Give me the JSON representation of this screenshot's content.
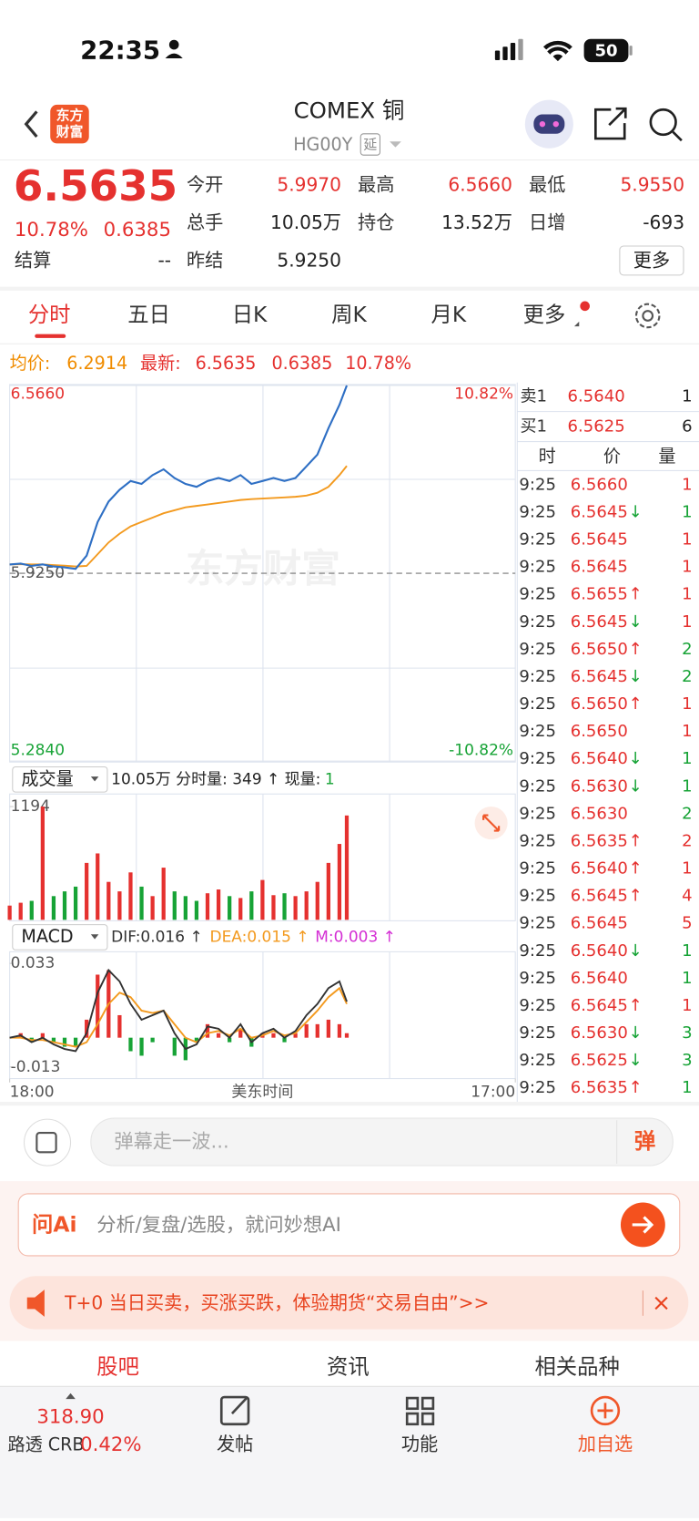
{
  "status": {
    "time": "22:35",
    "battery": "50"
  },
  "header": {
    "logo": [
      "东方",
      "财富"
    ],
    "title": "COMEX 铜",
    "code": "HG00Y",
    "tag": "延"
  },
  "quote": {
    "price": "6.5635",
    "change_pct": "10.78%",
    "change": "0.6385",
    "fields": [
      {
        "label": "今开",
        "value": "5.9970"
      },
      {
        "label": "最高",
        "value": "6.5660"
      },
      {
        "label": "最低",
        "value": "5.9550"
      },
      {
        "label": "总手",
        "value": "10.05万"
      },
      {
        "label": "持仓",
        "value": "13.52万"
      },
      {
        "label": "日增",
        "value": "-693"
      },
      {
        "label": "结算",
        "value": "--"
      },
      {
        "label": "昨结",
        "value": "5.9250"
      }
    ],
    "more": "更多"
  },
  "tabs": [
    "分时",
    "五日",
    "日K",
    "周K",
    "月K",
    "更多"
  ],
  "info": {
    "avg_label": "均价:",
    "avg": "6.2914",
    "latest_label": "最新:",
    "latest": "6.5635",
    "change": "0.6385",
    "change_pct": "10.78%"
  },
  "intraday": {
    "watermark": "东方财富",
    "xlim": [
      0,
      1380
    ],
    "xticks": [
      {
        "value": 0,
        "label": "18:00"
      },
      {
        "value": 1380,
        "label": "17:00"
      }
    ],
    "x_title": "美东时间",
    "ylim": [
      5.284,
      6.566
    ],
    "yticks": [
      {
        "value": 6.566,
        "label": "6.5660"
      },
      {
        "value": 5.925,
        "label": "5.9250"
      },
      {
        "value": 5.284,
        "label": "5.2840"
      }
    ],
    "pct_labels": [
      "10.82%",
      "-10.82%"
    ],
    "x": [
      0,
      30,
      60,
      90,
      120,
      150,
      180,
      210,
      240,
      270,
      300,
      330,
      360,
      390,
      420,
      450,
      480,
      510,
      540,
      570,
      600,
      630,
      660,
      690,
      720,
      750,
      780,
      810,
      840,
      870,
      900,
      920
    ],
    "price": {
      "color": "#2e6fc4",
      "values": [
        5.955,
        5.958,
        5.95,
        5.955,
        5.948,
        5.945,
        5.94,
        5.985,
        6.1,
        6.17,
        6.21,
        6.24,
        6.23,
        6.26,
        6.28,
        6.25,
        6.23,
        6.22,
        6.24,
        6.25,
        6.24,
        6.26,
        6.23,
        6.24,
        6.25,
        6.24,
        6.25,
        6.29,
        6.33,
        6.42,
        6.5,
        6.566
      ]
    },
    "avg": {
      "color": "#f39a1f",
      "values": [
        5.955,
        5.956,
        5.955,
        5.955,
        5.953,
        5.951,
        5.948,
        5.95,
        5.99,
        6.03,
        6.06,
        6.085,
        6.1,
        6.115,
        6.13,
        6.14,
        6.15,
        6.155,
        6.16,
        6.165,
        6.17,
        6.175,
        6.178,
        6.18,
        6.182,
        6.184,
        6.186,
        6.19,
        6.2,
        6.22,
        6.26,
        6.2914
      ]
    }
  },
  "volume": {
    "label": "成交量",
    "summary": "10.05万 分时量: 349 ↑ 现量:",
    "current": "1",
    "ylim": [
      0,
      1194
    ],
    "yticks": [
      1194
    ],
    "up_color": "#e5312f",
    "down_color": "#17a336",
    "values": [
      150,
      180,
      200,
      1194,
      250,
      300,
      350,
      600,
      700,
      400,
      300,
      500,
      350,
      250,
      550,
      300,
      250,
      200,
      280,
      320,
      250,
      230,
      300,
      420,
      260,
      280,
      250,
      300,
      400,
      600,
      800,
      1100
    ]
  },
  "macd": {
    "label": "MACD",
    "dif_label": "DIF:0.016 ↑",
    "dea_label": "DEA:0.015 ↑",
    "m_label": "M:0.003 ↑",
    "ylim": [
      -0.013,
      0.033
    ],
    "yticks": [
      0.033,
      -0.013
    ],
    "dif": {
      "color": "#333333",
      "values": [
        0,
        0.001,
        -0.002,
        0,
        -0.003,
        -0.005,
        -0.006,
        0.002,
        0.02,
        0.03,
        0.025,
        0.015,
        0.008,
        0.01,
        0.012,
        0.002,
        -0.005,
        -0.003,
        0.005,
        0.004,
        0,
        0.006,
        -0.002,
        0.002,
        0.004,
        0,
        0.003,
        0.01,
        0.015,
        0.022,
        0.025,
        0.016
      ]
    },
    "dea": {
      "color": "#f39a1f",
      "values": [
        0,
        0,
        -0.001,
        -0.001,
        -0.002,
        -0.003,
        -0.004,
        -0.002,
        0.006,
        0.015,
        0.02,
        0.018,
        0.012,
        0.011,
        0.012,
        0.006,
        0,
        -0.002,
        0.002,
        0.003,
        0.001,
        0.004,
        0,
        0.001,
        0.003,
        0.001,
        0.002,
        0.007,
        0.012,
        0.018,
        0.022,
        0.015
      ]
    }
  },
  "book": {
    "sell": [
      "卖1",
      "6.5640",
      "1"
    ],
    "buy": [
      "买1",
      "6.5625",
      "6"
    ],
    "headers": [
      "时",
      "价",
      "量"
    ],
    "trades": [
      {
        "time": "9:25",
        "price": "6.5660",
        "vol": "1",
        "vol_color": "red"
      },
      {
        "time": "9:25",
        "price": "6.5645",
        "arrow": "↓",
        "vol": "1",
        "vol_color": "green"
      },
      {
        "time": "9:25",
        "price": "6.5645",
        "vol": "1",
        "vol_color": "red"
      },
      {
        "time": "9:25",
        "price": "6.5645",
        "vol": "1",
        "vol_color": "red"
      },
      {
        "time": "9:25",
        "price": "6.5655",
        "arrow": "↑",
        "vol": "1",
        "vol_color": "red"
      },
      {
        "time": "9:25",
        "price": "6.5645",
        "arrow": "↓",
        "vol": "1",
        "vol_color": "red"
      },
      {
        "time": "9:25",
        "price": "6.5650",
        "arrow": "↑",
        "vol": "2",
        "vol_color": "green"
      },
      {
        "time": "9:25",
        "price": "6.5645",
        "arrow": "↓",
        "vol": "2",
        "vol_color": "green"
      },
      {
        "time": "9:25",
        "price": "6.5650",
        "arrow": "↑",
        "vol": "1",
        "vol_color": "red"
      },
      {
        "time": "9:25",
        "price": "6.5650",
        "vol": "1",
        "vol_color": "red"
      },
      {
        "time": "9:25",
        "price": "6.5640",
        "arrow": "↓",
        "vol": "1",
        "vol_color": "green"
      },
      {
        "time": "9:25",
        "price": "6.5630",
        "arrow": "↓",
        "vol": "1",
        "vol_color": "green"
      },
      {
        "time": "9:25",
        "price": "6.5630",
        "vol": "2",
        "vol_color": "green"
      },
      {
        "time": "9:25",
        "price": "6.5635",
        "arrow": "↑",
        "vol": "2",
        "vol_color": "red"
      },
      {
        "time": "9:25",
        "price": "6.5640",
        "arrow": "↑",
        "vol": "1",
        "vol_color": "red"
      },
      {
        "time": "9:25",
        "price": "6.5645",
        "arrow": "↑",
        "vol": "4",
        "vol_color": "red"
      },
      {
        "time": "9:25",
        "price": "6.5645",
        "vol": "5",
        "vol_color": "red"
      },
      {
        "time": "9:25",
        "price": "6.5640",
        "arrow": "↓",
        "vol": "1",
        "vol_color": "green"
      },
      {
        "time": "9:25",
        "price": "6.5640",
        "vol": "1",
        "vol_color": "green"
      },
      {
        "time": "9:25",
        "price": "6.5645",
        "arrow": "↑",
        "vol": "1",
        "vol_color": "red"
      },
      {
        "time": "9:25",
        "price": "6.5630",
        "arrow": "↓",
        "vol": "3",
        "vol_color": "green"
      },
      {
        "time": "9:25",
        "price": "6.5625",
        "arrow": "↓",
        "vol": "3",
        "vol_color": "green"
      },
      {
        "time": "9:25",
        "price": "6.5635",
        "arrow": "↑",
        "vol": "1",
        "vol_color": "green"
      }
    ]
  },
  "comment": {
    "placeholder": "弹幕走一波...",
    "button": "弹"
  },
  "ai": {
    "brand": "问Ai",
    "prompt": "分析/复盘/选股，就问妙想AI"
  },
  "banner": {
    "text": "T+0 当日买卖，买涨买跌，体验期货“交易自由”>>"
  },
  "section_tabs": [
    "股吧",
    "资讯",
    "相关品种"
  ],
  "bottom": {
    "index_value": "318.90",
    "index_name": "路透 CRB",
    "index_pct": "0.42%",
    "buttons": [
      "发帖",
      "功能",
      "加自选"
    ]
  }
}
